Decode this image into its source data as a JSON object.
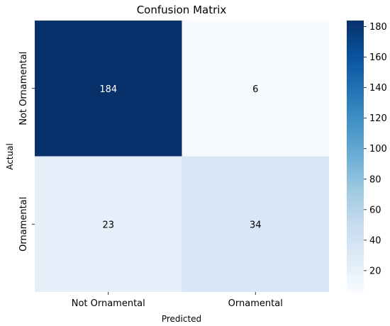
{
  "chart_data": {
    "type": "heatmap",
    "title": "Confusion Matrix",
    "xlabel": "Predicted",
    "ylabel": "Actual",
    "x_categories": [
      "Not Ornamental",
      "Ornamental"
    ],
    "y_categories": [
      "Not Ornamental",
      "Ornamental"
    ],
    "values": [
      [
        184,
        6
      ],
      [
        23,
        34
      ]
    ],
    "colormap": "Blues",
    "colorbar": {
      "range": [
        6,
        184
      ],
      "ticks": [
        20,
        40,
        60,
        80,
        100,
        120,
        140,
        160,
        180
      ]
    },
    "annotations": true,
    "grid": false
  }
}
